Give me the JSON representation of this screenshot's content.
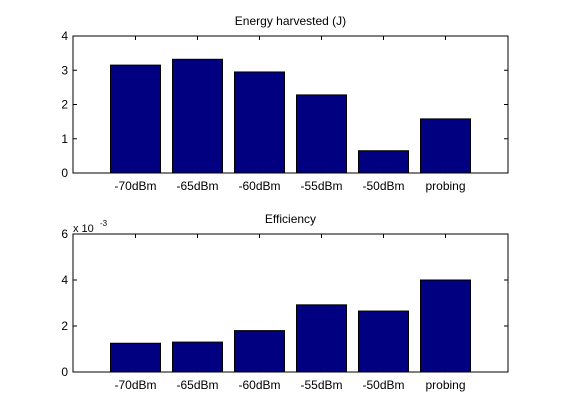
{
  "chart_data": [
    {
      "type": "bar",
      "title": "Energy harvested (J)",
      "categories": [
        "-70dBm",
        "-65dBm",
        "-60dBm",
        "-55dBm",
        "-50dBm",
        "probing"
      ],
      "values": [
        3.15,
        3.32,
        2.95,
        2.28,
        0.65,
        1.58
      ],
      "ylim": [
        0,
        4
      ],
      "yticks": [
        "0",
        "1",
        "2",
        "3",
        "4"
      ],
      "bar_color": "#000080",
      "grid": false
    },
    {
      "type": "bar",
      "title": "Efficiency",
      "categories": [
        "-70dBm",
        "-65dBm",
        "-60dBm",
        "-55dBm",
        "-50dBm",
        "probing"
      ],
      "values": [
        1.25,
        1.3,
        1.8,
        2.92,
        2.65,
        4.0
      ],
      "ylim": [
        0,
        6
      ],
      "yticks": [
        "0",
        "2",
        "4",
        "6"
      ],
      "multiplier": {
        "base": "x 10",
        "exponent": "-3"
      },
      "bar_color": "#000080",
      "grid": false
    }
  ]
}
